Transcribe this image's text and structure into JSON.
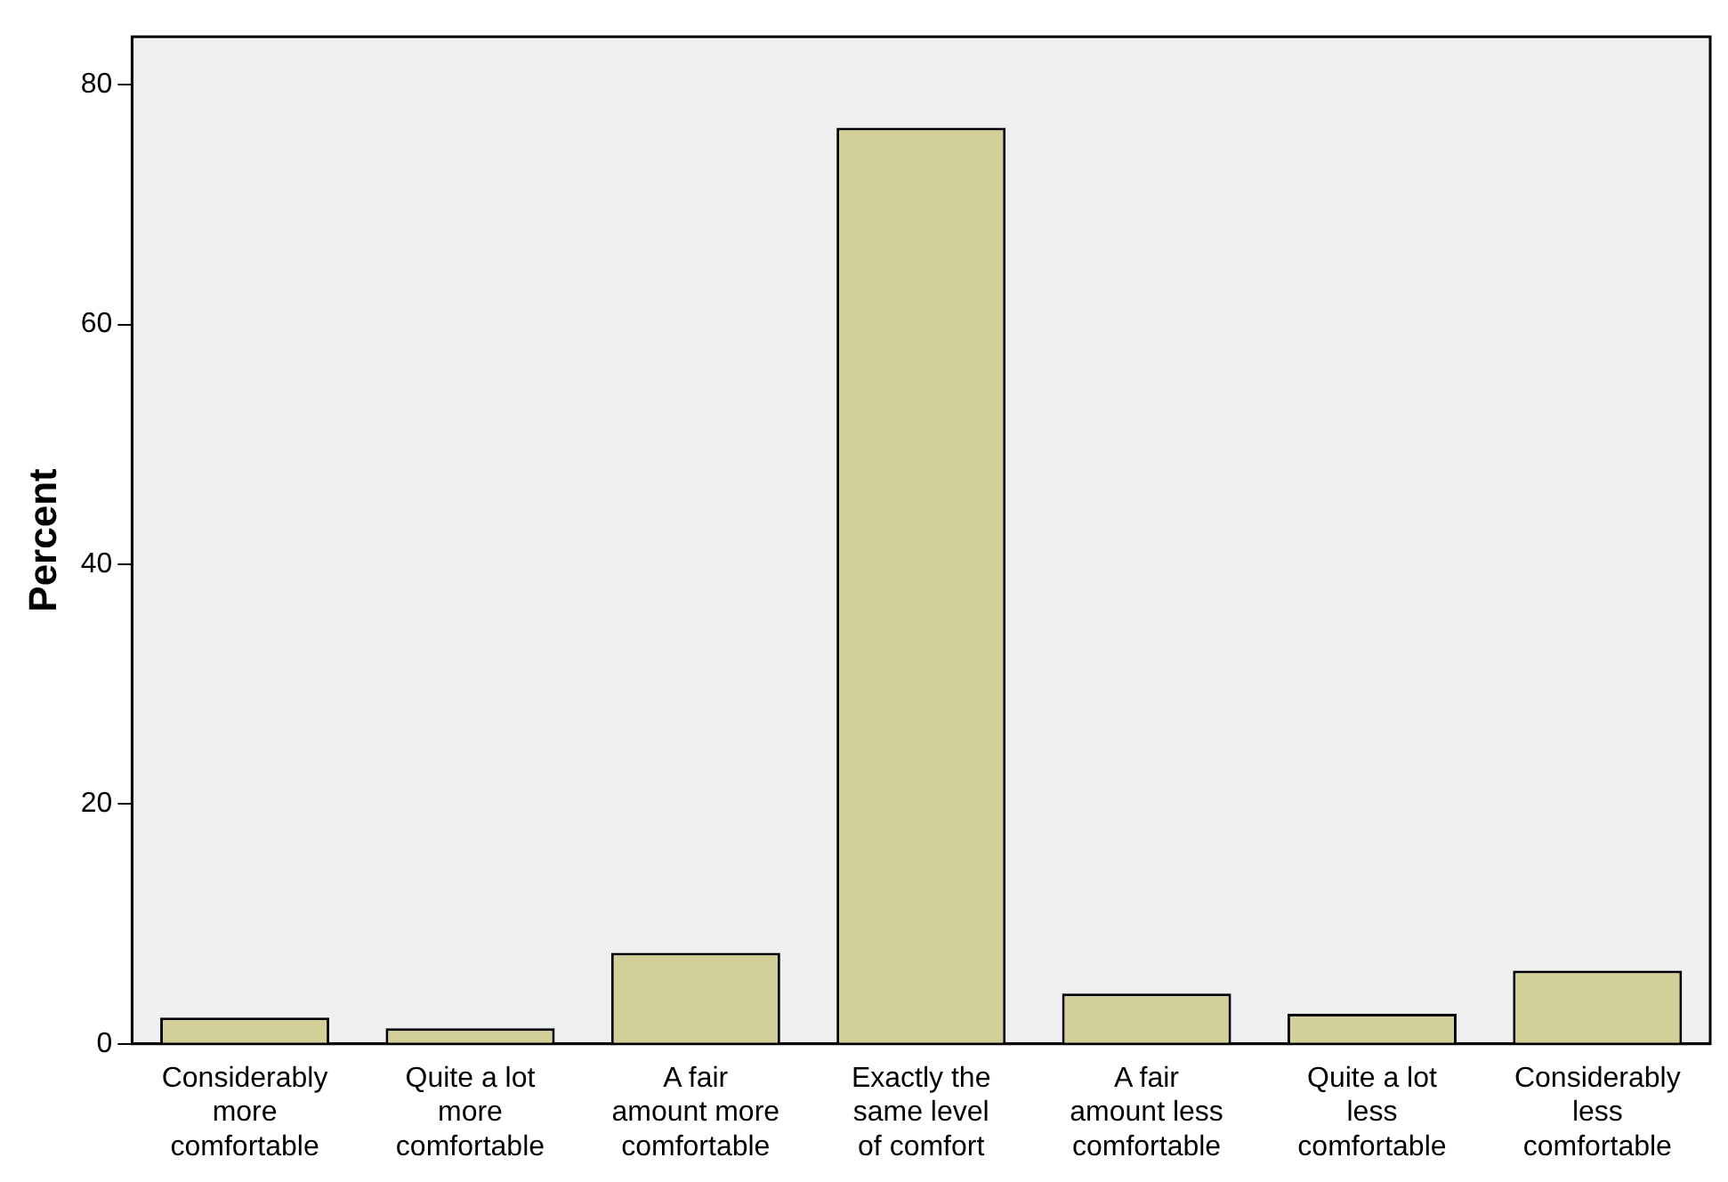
{
  "chart_data": {
    "type": "bar",
    "ylabel": "Percent",
    "categories": [
      "Considerably more comfortable",
      "Quite a lot more comfortable",
      "A fair amount more comfortable",
      "Exactly the same level of comfort",
      "A fair amount less comfortable",
      "Quite a lot less comfortable",
      "Considerably less comfortable"
    ],
    "values": [
      2.2,
      1.3,
      7.6,
      76.4,
      4.2,
      2.5,
      6.1
    ],
    "color": "#d3cf98",
    "ylim": [
      0,
      84
    ],
    "yticks": [
      0,
      20,
      40,
      60,
      80
    ],
    "grid": false,
    "legend": false
  }
}
